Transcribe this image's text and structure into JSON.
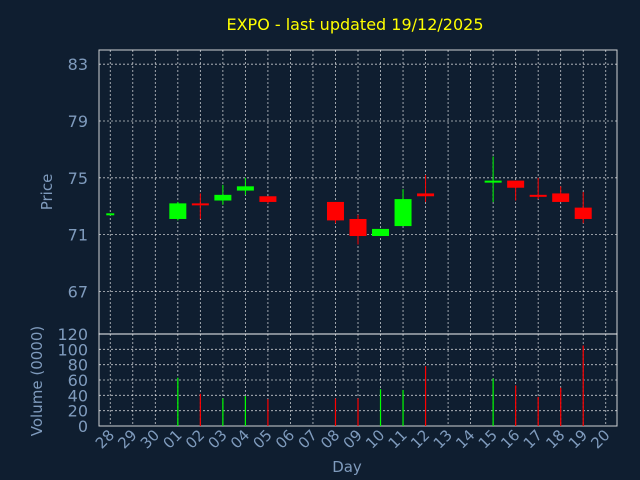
{
  "title": "EXPO - last updated 19/12/2025",
  "colors": {
    "background": "#0f1e30",
    "title": "#ffff00",
    "axis_text": "#7f9bbd",
    "up": "#00ff00",
    "down": "#ff0000",
    "grid": "#ffffff"
  },
  "chart_data": [
    {
      "type": "candlestick",
      "ylabel": "Price",
      "ylim": [
        64,
        84
      ],
      "yticks": [
        67,
        71,
        75,
        79,
        83
      ],
      "grid": true,
      "categories": [
        "28",
        "29",
        "30",
        "01",
        "02",
        "03",
        "04",
        "05",
        "06",
        "07",
        "08",
        "09",
        "10",
        "11",
        "12",
        "13",
        "14",
        "15",
        "16",
        "17",
        "18",
        "19",
        "20"
      ],
      "ohlc": [
        {
          "x": "28",
          "open": 72.5,
          "high": 72.5,
          "low": 72.5,
          "close": 72.5
        },
        {
          "x": "01",
          "open": 72.1,
          "high": 73.3,
          "low": 72.0,
          "close": 73.2
        },
        {
          "x": "02",
          "open": 73.2,
          "high": 73.9,
          "low": 72.1,
          "close": 73.1
        },
        {
          "x": "03",
          "open": 73.4,
          "high": 74.5,
          "low": 73.1,
          "close": 73.8
        },
        {
          "x": "04",
          "open": 74.1,
          "high": 75.0,
          "low": 73.8,
          "close": 74.4
        },
        {
          "x": "05",
          "open": 73.7,
          "high": 73.7,
          "low": 73.2,
          "close": 73.3
        },
        {
          "x": "08",
          "open": 73.3,
          "high": 73.3,
          "low": 71.8,
          "close": 72.0
        },
        {
          "x": "09",
          "open": 72.1,
          "high": 72.4,
          "low": 70.3,
          "close": 70.9
        },
        {
          "x": "10",
          "open": 70.9,
          "high": 71.4,
          "low": 70.9,
          "close": 71.4
        },
        {
          "x": "11",
          "open": 71.6,
          "high": 74.2,
          "low": 71.6,
          "close": 73.5
        },
        {
          "x": "12",
          "open": 73.9,
          "high": 75.2,
          "low": 73.3,
          "close": 73.7
        },
        {
          "x": "15",
          "open": 74.7,
          "high": 76.5,
          "low": 73.3,
          "close": 74.8
        },
        {
          "x": "16",
          "open": 74.8,
          "high": 74.8,
          "low": 73.4,
          "close": 74.3
        },
        {
          "x": "17",
          "open": 73.8,
          "high": 75.0,
          "low": 73.5,
          "close": 73.7
        },
        {
          "x": "18",
          "open": 73.9,
          "high": 74.4,
          "low": 73.3,
          "close": 73.3
        },
        {
          "x": "19",
          "open": 72.9,
          "high": 74.0,
          "low": 71.8,
          "close": 72.1
        }
      ]
    },
    {
      "type": "bar",
      "ylabel": "Volume (0000)",
      "xlabel": "Day",
      "ylim": [
        0,
        120
      ],
      "yticks": [
        0,
        20,
        40,
        60,
        80,
        100,
        120
      ],
      "grid": true,
      "categories": [
        "28",
        "29",
        "30",
        "01",
        "02",
        "03",
        "04",
        "05",
        "06",
        "07",
        "08",
        "09",
        "10",
        "11",
        "12",
        "13",
        "14",
        "15",
        "16",
        "17",
        "18",
        "19",
        "20"
      ],
      "bars": [
        {
          "x": "01",
          "value": 63,
          "direction": "up"
        },
        {
          "x": "02",
          "value": 42,
          "direction": "down"
        },
        {
          "x": "03",
          "value": 36,
          "direction": "up"
        },
        {
          "x": "04",
          "value": 39,
          "direction": "up"
        },
        {
          "x": "05",
          "value": 35,
          "direction": "down"
        },
        {
          "x": "08",
          "value": 36,
          "direction": "down"
        },
        {
          "x": "09",
          "value": 36,
          "direction": "down"
        },
        {
          "x": "10",
          "value": 48,
          "direction": "up"
        },
        {
          "x": "11",
          "value": 47,
          "direction": "up"
        },
        {
          "x": "12",
          "value": 78,
          "direction": "down"
        },
        {
          "x": "15",
          "value": 62,
          "direction": "up"
        },
        {
          "x": "16",
          "value": 53,
          "direction": "down"
        },
        {
          "x": "17",
          "value": 38,
          "direction": "down"
        },
        {
          "x": "18",
          "value": 50,
          "direction": "down"
        },
        {
          "x": "19",
          "value": 105,
          "direction": "down"
        }
      ]
    }
  ]
}
